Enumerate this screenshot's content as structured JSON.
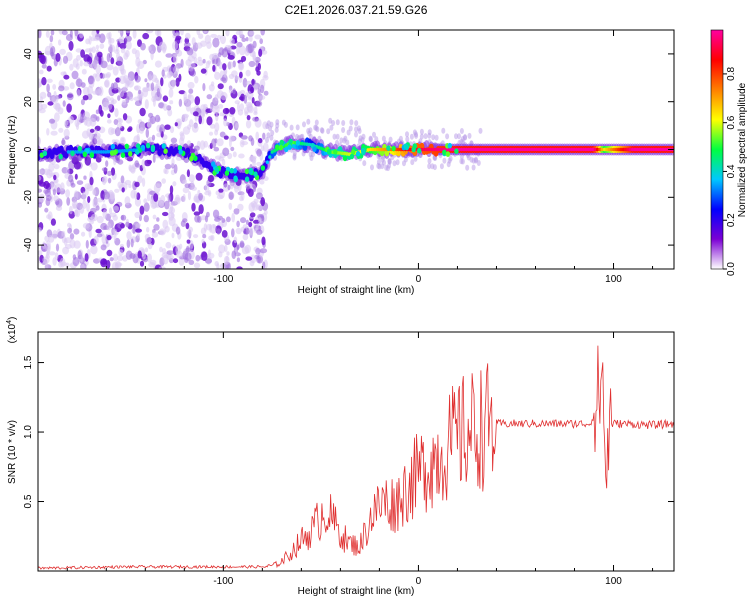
{
  "title": "C2E1.2026.037.21.59.G26",
  "chart_data": [
    {
      "type": "heatmap",
      "name": "spectrogram",
      "xlabel": "Height of straight line (km)",
      "ylabel": "Frequency (Hz)",
      "xlim": [
        -195,
        131
      ],
      "ylim": [
        -50,
        50
      ],
      "xticks": [
        -100,
        0,
        100
      ],
      "xtick_labels": [
        "-100",
        "0",
        "100"
      ],
      "yticks": [
        -40,
        -20,
        0,
        20,
        40
      ],
      "ytick_labels": [
        "-40",
        "-20",
        "0",
        "20",
        "40"
      ],
      "noise_region_x": [
        -195,
        -78
      ],
      "ridge": {
        "x": [
          -195,
          -180,
          -160,
          -140,
          -120,
          -100,
          -90,
          -80,
          -75,
          -65,
          -55,
          -45,
          -35,
          -25,
          -15,
          -5,
          5,
          20,
          40,
          60,
          80,
          90,
          95,
          110,
          131
        ],
        "freq": [
          -2,
          -1,
          -1,
          0,
          -1,
          -10,
          -11,
          -10,
          -1,
          3,
          2,
          -1,
          -2,
          0,
          0,
          0,
          0,
          0,
          0,
          0,
          0,
          0,
          0,
          0,
          0
        ],
        "amplitude": [
          0.25,
          0.3,
          0.3,
          0.3,
          0.28,
          0.25,
          0.25,
          0.25,
          0.4,
          0.5,
          0.35,
          0.5,
          0.55,
          0.6,
          0.7,
          0.85,
          0.9,
          0.95,
          0.95,
          0.95,
          0.95,
          0.95,
          0.6,
          0.95,
          0.95
        ]
      },
      "colorbar": {
        "label": "Normalized spectral amplitude",
        "range": [
          0,
          0.98
        ],
        "ticks": [
          0.0,
          0.2,
          0.4,
          0.6,
          0.8
        ],
        "tick_labels": [
          "0.0",
          "0.2",
          "0.4",
          "0.6",
          "0.8"
        ],
        "colors": [
          "#ffffff",
          "#7b00d4",
          "#0000ff",
          "#00c8ff",
          "#00ff40",
          "#ffff00",
          "#ff7f00",
          "#ff0000",
          "#ff00a0"
        ]
      }
    },
    {
      "type": "line",
      "name": "snr",
      "xlabel": "Height of straight line (km)",
      "ylabel": "SNR (10 * v/v)",
      "y_multiplier": "(x10^4)",
      "y_multiplier_base": "(x10",
      "y_multiplier_exp": "4",
      "y_multiplier_close": ")",
      "xlim": [
        -195,
        131
      ],
      "ylim": [
        0,
        1.72
      ],
      "xticks": [
        -100,
        0,
        100
      ],
      "xtick_labels": [
        "-100",
        "0",
        "100"
      ],
      "yticks": [
        0.5,
        1.0,
        1.5
      ],
      "ytick_labels": [
        "0.5",
        "1.0",
        "1.5"
      ],
      "series": [
        {
          "name": "SNR",
          "color": "#e03030",
          "x": [
            -195,
            -150,
            -120,
            -90,
            -78,
            -72,
            -66,
            -60,
            -54,
            -48,
            -42,
            -36,
            -30,
            -24,
            -18,
            -12,
            -6,
            0,
            6,
            12,
            20,
            30,
            40,
            50,
            60,
            70,
            80,
            88,
            92,
            94,
            96,
            98,
            105,
            120,
            131
          ],
          "y": [
            0.02,
            0.03,
            0.03,
            0.03,
            0.03,
            0.05,
            0.12,
            0.22,
            0.3,
            0.45,
            0.32,
            0.2,
            0.18,
            0.4,
            0.5,
            0.48,
            0.6,
            0.7,
            0.78,
            0.85,
            0.96,
            1.03,
            1.06,
            1.06,
            1.06,
            1.06,
            1.06,
            1.06,
            1.2,
            1.5,
            0.7,
            1.06,
            1.06,
            1.05,
            1.06
          ]
        }
      ]
    }
  ]
}
